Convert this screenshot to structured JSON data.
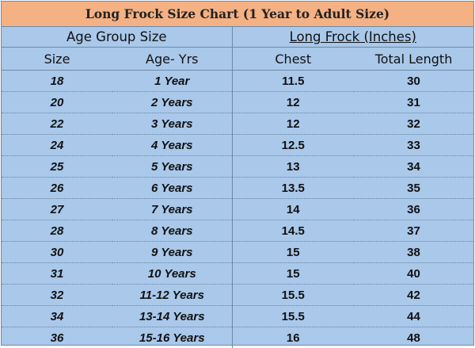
{
  "title": "Long Frock Size Chart (1 Year to Adult Size)",
  "groups": {
    "age_group": "Age Group Size",
    "long_frock": "Long Frock (Inches)"
  },
  "columns": [
    "Size",
    "Age- Yrs",
    "Chest",
    "Total Length"
  ],
  "rows": [
    {
      "size": "18",
      "age": "1 Year",
      "chest": "11.5",
      "length": "30"
    },
    {
      "size": "20",
      "age": "2 Years",
      "chest": "12",
      "length": "31"
    },
    {
      "size": "22",
      "age": "3 Years",
      "chest": "12",
      "length": "32"
    },
    {
      "size": "24",
      "age": "4 Years",
      "chest": "12.5",
      "length": "33"
    },
    {
      "size": "25",
      "age": "5 Years",
      "chest": "13",
      "length": "34"
    },
    {
      "size": "26",
      "age": "6 Years",
      "chest": "13.5",
      "length": "35"
    },
    {
      "size": "27",
      "age": "7 Years",
      "chest": "14",
      "length": "36"
    },
    {
      "size": "28",
      "age": "8 Years",
      "chest": "14.5",
      "length": "37"
    },
    {
      "size": "30",
      "age": "9 Years",
      "chest": "15",
      "length": "38"
    },
    {
      "size": "31",
      "age": "10 Years",
      "chest": "15",
      "length": "40"
    },
    {
      "size": "32",
      "age": "11-12 Years",
      "chest": "15.5",
      "length": "42"
    },
    {
      "size": "34",
      "age": "13-14 Years",
      "chest": "15.5",
      "length": "44"
    },
    {
      "size": "36",
      "age": "15-16 Years",
      "chest": "16",
      "length": "48"
    }
  ],
  "colors": {
    "title_bg": "#f4b183",
    "table_bg": "#a9c8ea",
    "grid_line": "#6f8aa8"
  }
}
